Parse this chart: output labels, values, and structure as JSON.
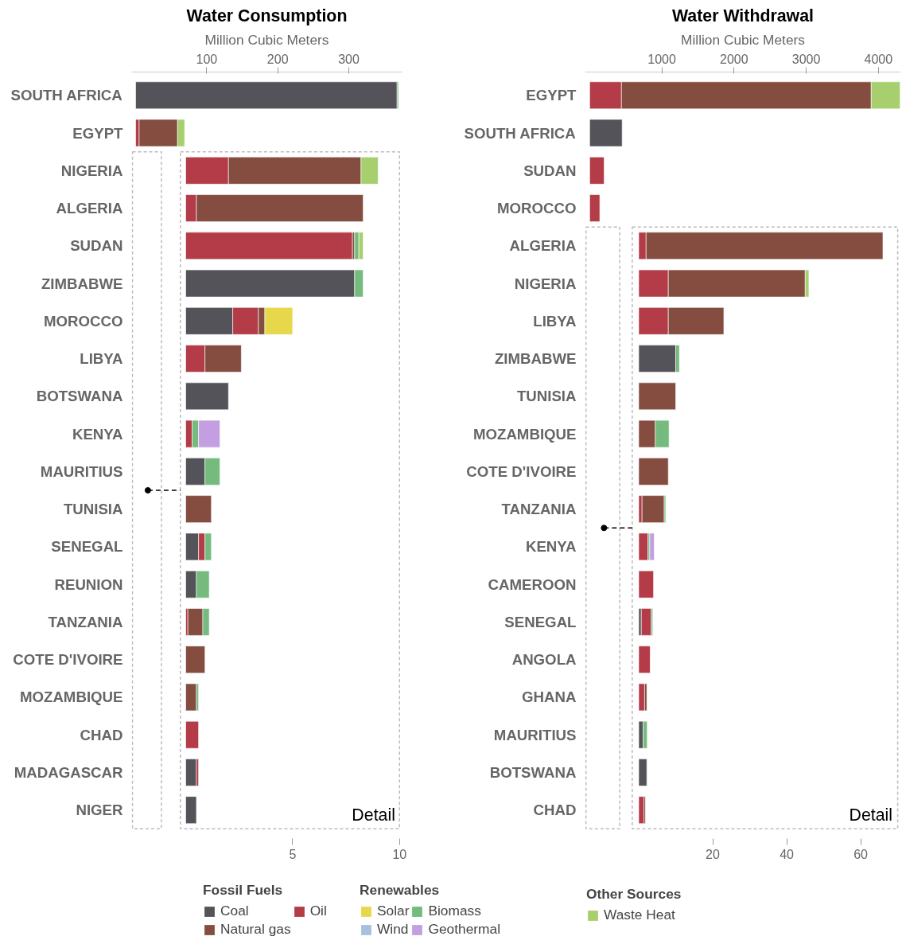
{
  "chart_data": [
    {
      "type": "bar",
      "orientation": "horizontal",
      "stacked": true,
      "title": "Water Consumption",
      "xlabel": "Million Cubic Meters",
      "legend": "bottom",
      "annotations": [
        "Fossil Fuels",
        "Renewables",
        "Other Sources",
        "Detail"
      ],
      "categories": [
        "SOUTH AFRICA",
        "EGYPT",
        "NIGERIA",
        "ALGERIA",
        "SUDAN",
        "ZIMBABWE",
        "MOROCCO",
        "LIBYA",
        "BOTSWANA",
        "KENYA",
        "MAURITIUS",
        "TUNISIA",
        "SENEGAL",
        "REUNION",
        "TANZANIA",
        "COTE D'IVOIRE",
        "MOZAMBIQUE",
        "CHAD",
        "MADAGASCAR",
        "NIGER"
      ],
      "xlim": [
        0,
        375
      ],
      "xticks": [
        100,
        200,
        300
      ],
      "x2lim": [
        0,
        10
      ],
      "x2ticks": [
        5,
        10
      ],
      "series": [
        {
          "name": "Coal",
          "color": "#54535a",
          "values": [
            368,
            null,
            null,
            null,
            null,
            null,
            null,
            null,
            null,
            null,
            null,
            null,
            null,
            null,
            null,
            null,
            null,
            null,
            null,
            null
          ]
        },
        {
          "name": "Oil",
          "color": "#b33c48",
          "values": [
            null,
            5,
            null,
            null,
            null,
            null,
            null,
            null,
            null,
            null,
            null,
            null,
            null,
            null,
            null,
            null,
            null,
            null,
            null,
            null
          ]
        },
        {
          "name": "Natural gas",
          "color": "#844d40",
          "values": [
            null,
            54,
            null,
            null,
            null,
            null,
            null,
            null,
            null,
            null,
            null,
            null,
            null,
            null,
            null,
            null,
            null,
            null,
            null,
            null
          ]
        },
        {
          "name": "Solar",
          "color": "#e6d84a",
          "values": [
            null,
            null,
            null,
            null,
            null,
            null,
            null,
            null,
            null,
            null,
            null,
            null,
            null,
            null,
            null,
            null,
            null,
            null,
            null,
            null
          ]
        },
        {
          "name": "Biomass",
          "color": "#74bb7d",
          "values": [
            2,
            null,
            null,
            null,
            null,
            null,
            null,
            null,
            null,
            null,
            null,
            null,
            null,
            null,
            null,
            null,
            null,
            null,
            null,
            null
          ]
        },
        {
          "name": "Wind",
          "color": "#a6c0de",
          "values": [
            null,
            null,
            null,
            null,
            null,
            null,
            null,
            null,
            null,
            null,
            null,
            null,
            null,
            null,
            null,
            null,
            null,
            null,
            null,
            null
          ]
        },
        {
          "name": "Geothermal",
          "color": "#c39ee0",
          "values": [
            null,
            null,
            null,
            null,
            null,
            null,
            null,
            null,
            null,
            null,
            null,
            null,
            null,
            null,
            null,
            null,
            null,
            null,
            null,
            null
          ]
        },
        {
          "name": "Waste Heat",
          "color": "#a7cf6e",
          "values": [
            null,
            10,
            null,
            null,
            null,
            null,
            null,
            null,
            null,
            null,
            null,
            null,
            null,
            null,
            null,
            null,
            null,
            null,
            null,
            null
          ]
        },
        {
          "axis": "x2",
          "color": "#54535a",
          "values": [
            null,
            null,
            null,
            null,
            null,
            7.9,
            2.2,
            null,
            2.0,
            null,
            0.9,
            null,
            0.6,
            0.5,
            null,
            null,
            null,
            null,
            0.5,
            0.5
          ]
        },
        {
          "axis": "x2",
          "color": "#b33c48",
          "values": [
            null,
            null,
            2.0,
            0.5,
            7.8,
            null,
            1.2,
            0.9,
            null,
            0.3,
            null,
            null,
            0.3,
            null,
            0.1,
            null,
            null,
            0.6,
            0.1,
            null
          ]
        },
        {
          "axis": "x2",
          "color": "#844d40",
          "values": [
            null,
            null,
            6.2,
            7.8,
            0.1,
            null,
            0.3,
            1.7,
            null,
            null,
            null,
            1.2,
            null,
            null,
            0.7,
            0.9,
            0.5,
            null,
            null,
            null
          ]
        },
        {
          "axis": "x2",
          "color": "#e6d84a",
          "values": [
            null,
            null,
            null,
            null,
            null,
            null,
            1.3,
            null,
            null,
            null,
            null,
            null,
            null,
            null,
            null,
            null,
            null,
            null,
            null,
            null
          ]
        },
        {
          "axis": "x2",
          "color": "#74bb7d",
          "values": [
            null,
            null,
            null,
            null,
            0.2,
            0.4,
            null,
            null,
            null,
            0.3,
            0.7,
            null,
            0.3,
            0.6,
            0.3,
            null,
            0.1,
            null,
            null,
            null
          ]
        },
        {
          "axis": "x2",
          "color": "#c39ee0",
          "values": [
            null,
            null,
            null,
            null,
            null,
            null,
            null,
            null,
            null,
            1.0,
            null,
            null,
            null,
            null,
            null,
            null,
            null,
            null,
            null,
            null
          ]
        },
        {
          "axis": "x2",
          "color": "#a7cf6e",
          "values": [
            null,
            null,
            0.8,
            null,
            0.2,
            null,
            null,
            null,
            null,
            null,
            null,
            null,
            null,
            null,
            null,
            null,
            null,
            null,
            null,
            null
          ]
        }
      ]
    },
    {
      "type": "bar",
      "orientation": "horizontal",
      "stacked": true,
      "title": "Water Withdrawal",
      "xlabel": "Million Cubic Meters",
      "annotations": [
        "Detail"
      ],
      "categories": [
        "EGYPT",
        "SOUTH AFRICA",
        "SUDAN",
        "MOROCCO",
        "ALGERIA",
        "NIGERIA",
        "LIBYA",
        "ZIMBABWE",
        "TUNISIA",
        "MOZAMBIQUE",
        "COTE D'IVOIRE",
        "TANZANIA",
        "KENYA",
        "CAMEROON",
        "SENEGAL",
        "ANGOLA",
        "GHANA",
        "MAURITIUS",
        "BOTSWANA",
        "CHAD"
      ],
      "xlim": [
        0,
        4310
      ],
      "xticks": [
        1000,
        2000,
        3000,
        4000
      ],
      "x2lim": [
        0,
        70
      ],
      "x2ticks": [
        20,
        40,
        60
      ],
      "series": [
        {
          "color": "#54535a",
          "values": [
            null,
            450,
            null,
            null,
            null,
            null,
            null,
            null,
            null,
            null,
            null,
            null,
            null,
            null,
            null,
            null,
            null,
            null,
            null,
            null
          ]
        },
        {
          "color": "#b33c48",
          "values": [
            440,
            null,
            200,
            140,
            null,
            null,
            null,
            null,
            null,
            null,
            null,
            null,
            null,
            null,
            null,
            null,
            null,
            null,
            null,
            null
          ]
        },
        {
          "color": "#844d40",
          "values": [
            3460,
            null,
            null,
            null,
            null,
            null,
            null,
            null,
            null,
            null,
            null,
            null,
            null,
            null,
            null,
            null,
            null,
            null,
            null,
            null
          ]
        },
        {
          "color": "#a7cf6e",
          "values": [
            400,
            null,
            null,
            null,
            null,
            null,
            null,
            null,
            null,
            null,
            null,
            null,
            null,
            null,
            null,
            null,
            null,
            null,
            null,
            null
          ]
        },
        {
          "axis": "x2",
          "color": "#54535a",
          "values": [
            null,
            null,
            null,
            null,
            null,
            null,
            null,
            10,
            null,
            null,
            null,
            null,
            null,
            null,
            0.7,
            null,
            null,
            1.2,
            2.2,
            null
          ]
        },
        {
          "axis": "x2",
          "color": "#b33c48",
          "values": [
            null,
            null,
            null,
            null,
            2,
            8,
            8,
            null,
            null,
            null,
            null,
            0.9,
            2.5,
            4,
            2.7,
            3.1,
            1.6,
            null,
            null,
            1.4
          ]
        },
        {
          "axis": "x2",
          "color": "#844d40",
          "values": [
            null,
            null,
            null,
            null,
            64,
            37,
            15,
            null,
            10,
            4.5,
            8,
            6,
            null,
            null,
            null,
            null,
            0.6,
            null,
            null,
            0.4
          ]
        },
        {
          "axis": "x2",
          "color": "#74bb7d",
          "values": [
            null,
            null,
            null,
            null,
            null,
            null,
            null,
            1,
            null,
            3.7,
            null,
            0.4,
            0.5,
            null,
            0.4,
            null,
            null,
            1.1,
            null,
            null
          ]
        },
        {
          "axis": "x2",
          "color": "#c39ee0",
          "values": [
            null,
            null,
            null,
            null,
            null,
            null,
            null,
            null,
            null,
            null,
            null,
            null,
            1.2,
            null,
            null,
            null,
            null,
            null,
            null,
            null
          ]
        },
        {
          "axis": "x2",
          "color": "#a7cf6e",
          "values": [
            null,
            null,
            null,
            null,
            null,
            1,
            null,
            null,
            null,
            null,
            null,
            null,
            null,
            null,
            null,
            null,
            null,
            null,
            null,
            null
          ]
        }
      ]
    }
  ]
}
